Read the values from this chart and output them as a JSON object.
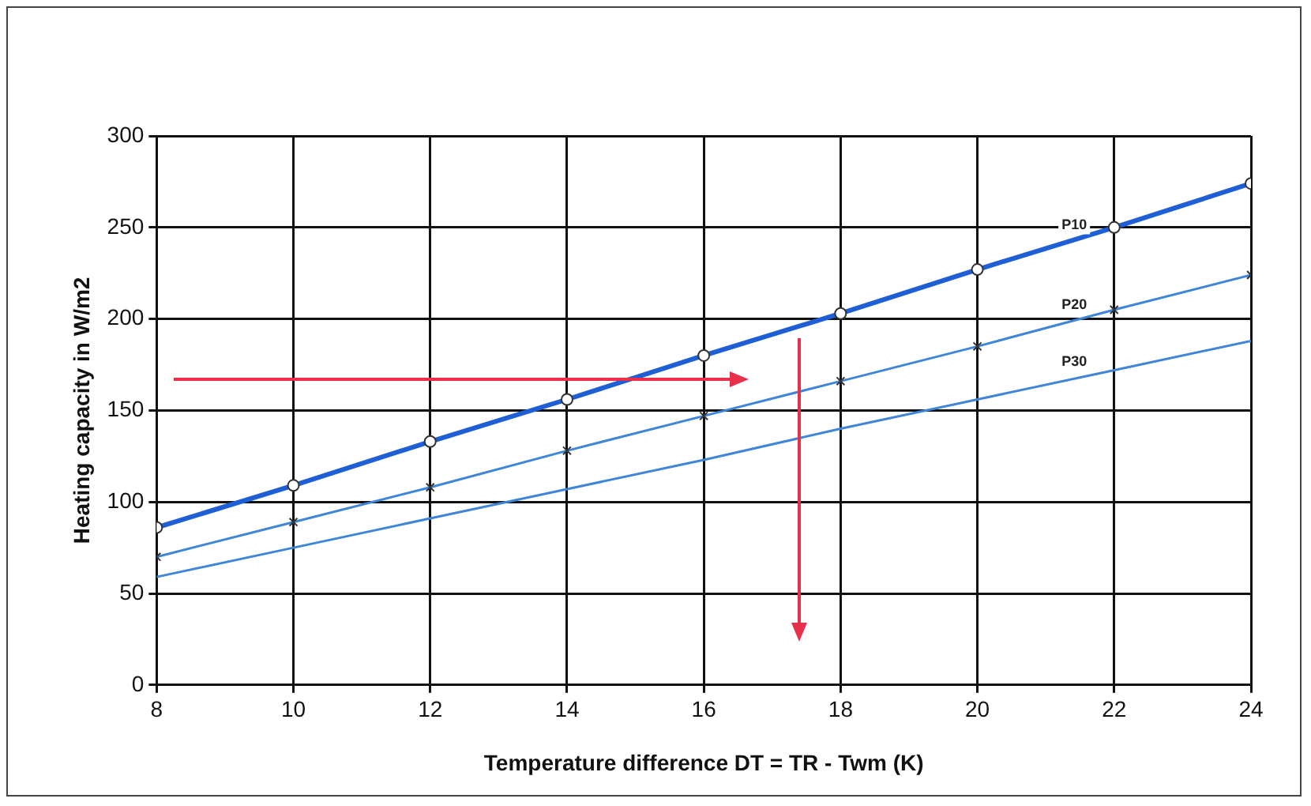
{
  "chart_data": {
    "type": "line",
    "xlabel": "Temperature difference DT = TR - Twm (K)",
    "ylabel": "Heating capacity in W/m2",
    "x": [
      8,
      10,
      12,
      14,
      16,
      18,
      20,
      22,
      24
    ],
    "series": [
      {
        "name": "P10",
        "color": "#1f5fd6",
        "marker": "circle",
        "values": [
          86,
          109,
          133,
          156,
          180,
          203,
          227,
          250,
          274
        ]
      },
      {
        "name": "P20",
        "color": "#3f86d8",
        "marker": "cross",
        "values": [
          70,
          89,
          108,
          128,
          147,
          166,
          185,
          205,
          224
        ]
      },
      {
        "name": "P30",
        "color": "#3f86d8",
        "marker": "none",
        "values": [
          59,
          75,
          91,
          107,
          123,
          140,
          156,
          172,
          188
        ]
      }
    ],
    "xlim": [
      8,
      24
    ],
    "xticks": [
      8,
      10,
      12,
      14,
      16,
      18,
      20,
      22,
      24
    ],
    "ylim": [
      0,
      300
    ],
    "yticks": [
      0,
      50,
      100,
      150,
      200,
      250,
      300
    ],
    "grid": true,
    "legend": false,
    "line_style": "solid"
  }
}
